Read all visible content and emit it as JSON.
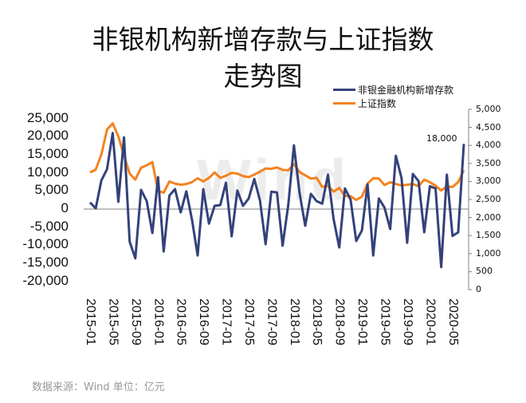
{
  "title_line1": "非银机构新增存款与上证指数",
  "title_line2": "走势图",
  "legend": [
    {
      "label": "非银金融机构新增存款",
      "color": "#34427a"
    },
    {
      "label": "上证指数",
      "color": "#f5821f"
    }
  ],
  "watermark": "Wind",
  "annotation": "18,000",
  "footer": "数据来源：Wind   单位：亿元",
  "left_ticks": [
    "25,000",
    "20,000",
    "15,000",
    "10,000",
    "5,000",
    "0",
    "-5,000",
    "-10,000",
    "-15,000",
    "-20,000"
  ],
  "right_ticks": [
    "5,000",
    "4,500",
    "4,000",
    "3,500",
    "3,000",
    "2,500",
    "2,000",
    "1,500",
    "1,000",
    "500",
    "0"
  ],
  "x_ticks": [
    "2015-01",
    "2015-05",
    "2015-09",
    "2016-01",
    "2016-05",
    "2016-09",
    "2017-01",
    "2017-05",
    "2017-09",
    "2018-01",
    "2018-05",
    "2018-09",
    "2019-01",
    "2019-05",
    "2019-09",
    "2020-01",
    "2020-05"
  ],
  "chart_data": {
    "type": "line",
    "title": "非银机构新增存款与上证指数走势图",
    "xlabel": "",
    "ylabel_left": "亿元",
    "ylim_left": [
      -20000,
      25000
    ],
    "ylim_right": [
      0,
      5000
    ],
    "legend_position": "top-right",
    "grid": false,
    "x": [
      "2015-01",
      "2015-02",
      "2015-03",
      "2015-04",
      "2015-05",
      "2015-06",
      "2015-07",
      "2015-08",
      "2015-09",
      "2015-10",
      "2015-11",
      "2015-12",
      "2016-01",
      "2016-02",
      "2016-03",
      "2016-04",
      "2016-05",
      "2016-06",
      "2016-07",
      "2016-08",
      "2016-09",
      "2016-10",
      "2016-11",
      "2016-12",
      "2017-01",
      "2017-02",
      "2017-03",
      "2017-04",
      "2017-05",
      "2017-06",
      "2017-07",
      "2017-08",
      "2017-09",
      "2017-10",
      "2017-11",
      "2017-12",
      "2018-01",
      "2018-02",
      "2018-03",
      "2018-04",
      "2018-05",
      "2018-06",
      "2018-07",
      "2018-08",
      "2018-09",
      "2018-10",
      "2018-11",
      "2018-12",
      "2019-01",
      "2019-02",
      "2019-03",
      "2019-04",
      "2019-05",
      "2019-06",
      "2019-07",
      "2019-08",
      "2019-09",
      "2019-10",
      "2019-11",
      "2019-12",
      "2020-01",
      "2020-02",
      "2020-03",
      "2020-04",
      "2020-05",
      "2020-06",
      "2020-07"
    ],
    "series": [
      {
        "name": "非银金融机构新增存款",
        "axis": "left",
        "color": "#34427a",
        "values": [
          1800,
          200,
          7900,
          11000,
          21000,
          2000,
          19800,
          -9000,
          -13600,
          5300,
          2200,
          -6600,
          8800,
          -11700,
          3700,
          5500,
          -900,
          4900,
          -2900,
          -12800,
          5500,
          -4000,
          900,
          1100,
          7300,
          -7500,
          5100,
          900,
          2900,
          8300,
          2400,
          -9700,
          4800,
          4600,
          -10100,
          1100,
          17600,
          4400,
          -4600,
          4200,
          2200,
          1500,
          9500,
          -2800,
          -10600,
          5700,
          2600,
          -8800,
          -5900,
          6800,
          -12800,
          2900,
          400,
          -5500,
          14700,
          8600,
          -9300,
          9700,
          7700,
          -6400,
          6300,
          5700,
          -16000,
          9500,
          -7400,
          -6400,
          18000
        ]
      },
      {
        "name": "上证指数",
        "axis": "right",
        "color": "#f5821f",
        "values": [
          3250,
          3330,
          3750,
          4440,
          4610,
          4250,
          3720,
          3220,
          3050,
          3380,
          3450,
          3540,
          2740,
          2690,
          3000,
          2940,
          2910,
          2930,
          2980,
          3090,
          3000,
          3100,
          3250,
          3100,
          3160,
          3240,
          3220,
          3150,
          3120,
          3190,
          3270,
          3360,
          3350,
          3390,
          3320,
          3310,
          3480,
          3260,
          3170,
          3080,
          3100,
          2850,
          2880,
          2720,
          2820,
          2600,
          2590,
          2490,
          2580,
          2940,
          3090,
          3080,
          2900,
          2980,
          2930,
          2890,
          2910,
          2930,
          2870,
          3050,
          2980,
          2880,
          2750,
          2860,
          2850,
          2980,
          3310
        ]
      }
    ]
  }
}
